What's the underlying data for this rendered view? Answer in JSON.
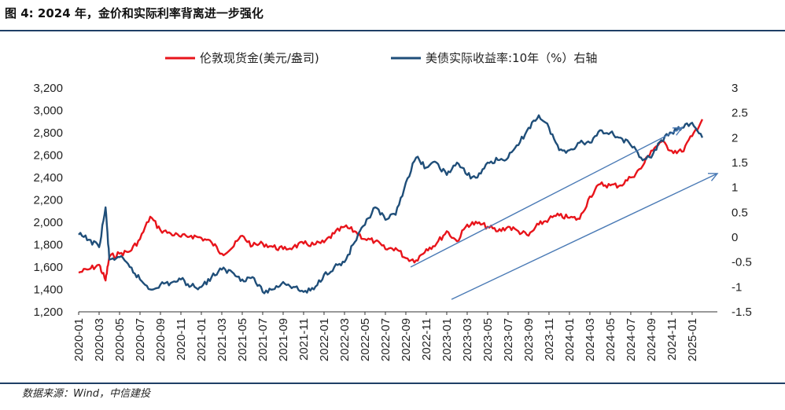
{
  "figure": {
    "title": "图 4: 2024 年，金价和实际利率背离进一步强化",
    "source": "数据来源：Wind，中信建投"
  },
  "chart_data": {
    "type": "line",
    "xlabel": "",
    "ylabel": "",
    "x_ticks": [
      "2020-01",
      "2020-03",
      "2020-05",
      "2020-07",
      "2020-09",
      "2020-11",
      "2021-01",
      "2021-03",
      "2021-05",
      "2021-07",
      "2021-09",
      "2021-11",
      "2022-01",
      "2022-03",
      "2022-05",
      "2022-07",
      "2022-09",
      "2022-11",
      "2023-01",
      "2023-03",
      "2023-05",
      "2023-07",
      "2023-09",
      "2023-11",
      "2024-01",
      "2024-03",
      "2024-05",
      "2024-07",
      "2024-09",
      "2024-11",
      "2025-01"
    ],
    "y_left": {
      "min": 1200,
      "max": 3200,
      "ticks": [
        "1,200",
        "1,400",
        "1,600",
        "1,800",
        "2,000",
        "2,200",
        "2,400",
        "2,600",
        "2,800",
        "3,000",
        "3,200"
      ]
    },
    "y_right": {
      "min": -1.5,
      "max": 3,
      "ticks": [
        "-1.5",
        "-1",
        "-0.5",
        "0",
        "0.5",
        "1",
        "1.5",
        "2",
        "2.5",
        "3"
      ]
    },
    "legend_position": "top",
    "series": [
      {
        "name": "伦敦现货金(美元/盎司)",
        "axis": "left",
        "color": "#e8141b",
        "points": [
          [
            "2020-01",
            1550
          ],
          [
            "2020-02",
            1580
          ],
          [
            "2020-03",
            1620
          ],
          [
            "2020-03-20",
            1480
          ],
          [
            "2020-04",
            1690
          ],
          [
            "2020-05",
            1720
          ],
          [
            "2020-06",
            1740
          ],
          [
            "2020-07",
            1850
          ],
          [
            "2020-08",
            2050
          ],
          [
            "2020-09",
            1930
          ],
          [
            "2020-10",
            1900
          ],
          [
            "2020-11",
            1870
          ],
          [
            "2020-12",
            1880
          ],
          [
            "2021-01",
            1860
          ],
          [
            "2021-02",
            1820
          ],
          [
            "2021-03",
            1720
          ],
          [
            "2021-04",
            1770
          ],
          [
            "2021-05",
            1880
          ],
          [
            "2021-06",
            1790
          ],
          [
            "2021-07",
            1810
          ],
          [
            "2021-08",
            1780
          ],
          [
            "2021-09",
            1760
          ],
          [
            "2021-10",
            1780
          ],
          [
            "2021-11",
            1810
          ],
          [
            "2021-12",
            1800
          ],
          [
            "2022-01",
            1820
          ],
          [
            "2022-02",
            1900
          ],
          [
            "2022-03",
            1960
          ],
          [
            "2022-04",
            1920
          ],
          [
            "2022-05",
            1850
          ],
          [
            "2022-06",
            1830
          ],
          [
            "2022-07",
            1760
          ],
          [
            "2022-08",
            1770
          ],
          [
            "2022-09",
            1680
          ],
          [
            "2022-10",
            1660
          ],
          [
            "2022-11",
            1760
          ],
          [
            "2022-12",
            1810
          ],
          [
            "2023-01",
            1920
          ],
          [
            "2023-02",
            1830
          ],
          [
            "2023-03",
            1980
          ],
          [
            "2023-04",
            1990
          ],
          [
            "2023-05",
            1960
          ],
          [
            "2023-06",
            1920
          ],
          [
            "2023-07",
            1960
          ],
          [
            "2023-08",
            1920
          ],
          [
            "2023-09",
            1880
          ],
          [
            "2023-10",
            1980
          ],
          [
            "2023-11",
            2030
          ],
          [
            "2023-12",
            2060
          ],
          [
            "2024-01",
            2040
          ],
          [
            "2024-02",
            2030
          ],
          [
            "2024-03",
            2230
          ],
          [
            "2024-04",
            2340
          ],
          [
            "2024-05",
            2330
          ],
          [
            "2024-06",
            2330
          ],
          [
            "2024-07",
            2400
          ],
          [
            "2024-08",
            2480
          ],
          [
            "2024-09",
            2640
          ],
          [
            "2024-10",
            2720
          ],
          [
            "2024-11",
            2640
          ],
          [
            "2024-12",
            2630
          ],
          [
            "2025-01",
            2770
          ],
          [
            "2025-02",
            2920
          ]
        ]
      },
      {
        "name": "美债实际收益率:10年（%）右轴",
        "axis": "right",
        "color": "#1f4e79",
        "points": [
          [
            "2020-01",
            0.05
          ],
          [
            "2020-02",
            -0.05
          ],
          [
            "2020-03",
            -0.2
          ],
          [
            "2020-03-20",
            0.6
          ],
          [
            "2020-04",
            -0.45
          ],
          [
            "2020-05",
            -0.4
          ],
          [
            "2020-06",
            -0.6
          ],
          [
            "2020-07",
            -0.85
          ],
          [
            "2020-08",
            -1.05
          ],
          [
            "2020-09",
            -0.95
          ],
          [
            "2020-10",
            -0.92
          ],
          [
            "2020-11",
            -0.85
          ],
          [
            "2020-12",
            -0.98
          ],
          [
            "2021-01",
            -1.0
          ],
          [
            "2021-02",
            -0.8
          ],
          [
            "2021-03",
            -0.65
          ],
          [
            "2021-04",
            -0.7
          ],
          [
            "2021-05",
            -0.85
          ],
          [
            "2021-06",
            -0.8
          ],
          [
            "2021-07",
            -1.1
          ],
          [
            "2021-08",
            -1.05
          ],
          [
            "2021-09",
            -0.9
          ],
          [
            "2021-10",
            -1.0
          ],
          [
            "2021-11",
            -1.1
          ],
          [
            "2021-12",
            -1.05
          ],
          [
            "2022-01",
            -0.75
          ],
          [
            "2022-02",
            -0.6
          ],
          [
            "2022-03",
            -0.5
          ],
          [
            "2022-04",
            -0.1
          ],
          [
            "2022-05",
            0.25
          ],
          [
            "2022-06",
            0.6
          ],
          [
            "2022-07",
            0.35
          ],
          [
            "2022-08",
            0.45
          ],
          [
            "2022-09",
            1.1
          ],
          [
            "2022-10",
            1.6
          ],
          [
            "2022-11",
            1.4
          ],
          [
            "2022-12",
            1.5
          ],
          [
            "2023-01",
            1.25
          ],
          [
            "2023-02",
            1.5
          ],
          [
            "2023-03",
            1.25
          ],
          [
            "2023-04",
            1.2
          ],
          [
            "2023-05",
            1.5
          ],
          [
            "2023-06",
            1.55
          ],
          [
            "2023-07",
            1.6
          ],
          [
            "2023-08",
            1.85
          ],
          [
            "2023-09",
            2.2
          ],
          [
            "2023-10",
            2.45
          ],
          [
            "2023-11",
            2.2
          ],
          [
            "2023-12",
            1.75
          ],
          [
            "2024-01",
            1.75
          ],
          [
            "2024-02",
            1.9
          ],
          [
            "2024-03",
            1.9
          ],
          [
            "2024-04",
            2.15
          ],
          [
            "2024-05",
            2.1
          ],
          [
            "2024-06",
            2.0
          ],
          [
            "2024-07",
            1.85
          ],
          [
            "2024-08",
            1.6
          ],
          [
            "2024-09",
            1.6
          ],
          [
            "2024-10",
            1.95
          ],
          [
            "2024-11",
            2.1
          ],
          [
            "2024-12",
            2.2
          ],
          [
            "2025-01",
            2.3
          ],
          [
            "2025-02",
            2.0
          ]
        ]
      }
    ],
    "annotations": [
      {
        "type": "arrow",
        "from": [
          "2022-09-15",
          -0.6
        ],
        "to": [
          "2024-12-01",
          2.2
        ],
        "color": "#4a7ab5"
      },
      {
        "type": "arrow",
        "from": [
          "2023-01-15",
          -1.25
        ],
        "to": [
          "2025-03-15",
          1.28
        ],
        "color": "#4a7ab5"
      }
    ]
  }
}
